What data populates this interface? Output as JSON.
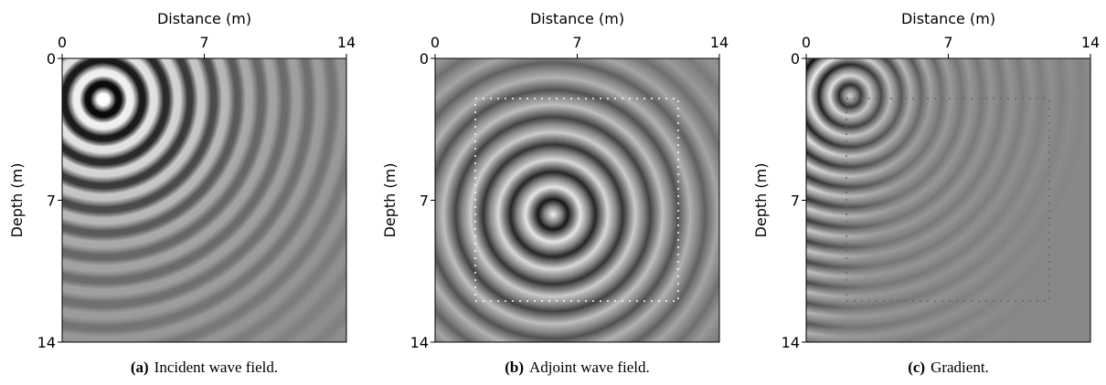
{
  "chart_data": [
    {
      "type": "image",
      "xlabel": "Distance (m)",
      "ylabel": "Depth (m)",
      "xlim": [
        0,
        14
      ],
      "ylim": [
        0,
        14
      ],
      "y_inverted": true,
      "xticks": [
        0,
        7,
        14
      ],
      "yticks": [
        0,
        7,
        14
      ],
      "caption_label": "(a)",
      "caption": "Incident wave field."
    },
    {
      "type": "image",
      "xlabel": "Distance (m)",
      "ylabel": "Depth (m)",
      "xlim": [
        0,
        14
      ],
      "ylim": [
        0,
        14
      ],
      "y_inverted": true,
      "xticks": [
        0,
        7,
        14
      ],
      "yticks": [
        0,
        7,
        14
      ],
      "caption_label": "(b)",
      "caption": "Adjoint wave field."
    },
    {
      "type": "image",
      "xlabel": "Distance (m)",
      "ylabel": "Depth (m)",
      "xlim": [
        0,
        14
      ],
      "ylim": [
        0,
        14
      ],
      "y_inverted": true,
      "xticks": [
        0,
        7,
        14
      ],
      "yticks": [
        0,
        7,
        14
      ],
      "caption_label": "(c)",
      "caption": "Gradient."
    }
  ]
}
